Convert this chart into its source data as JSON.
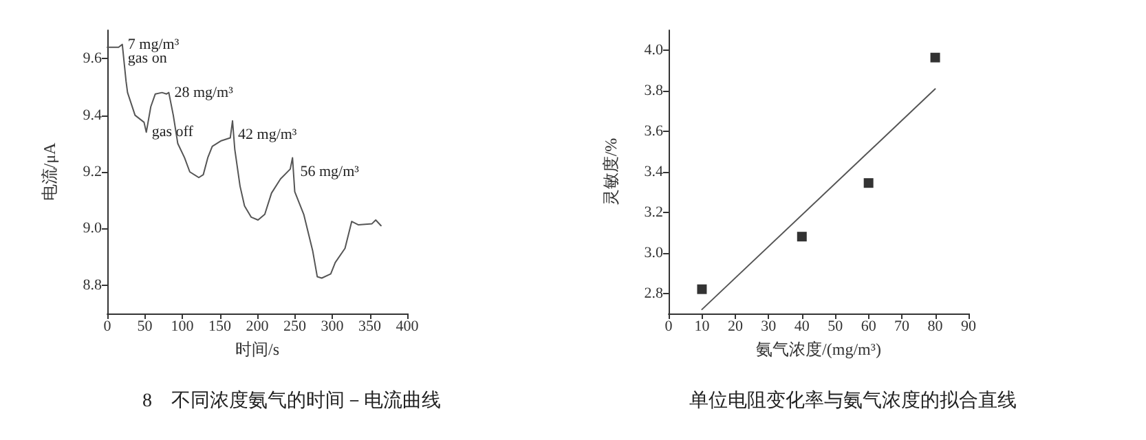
{
  "chart_data": [
    {
      "type": "line",
      "title": "8　不同浓度氨气的时间－电流曲线",
      "xlabel": "时间/s",
      "ylabel": "电流/μA",
      "xlim": [
        0,
        400
      ],
      "xticks": [
        0,
        50,
        100,
        150,
        200,
        250,
        300,
        350,
        400
      ],
      "ylim": [
        8.7,
        9.7
      ],
      "yticks": [
        {
          "value": 8.8,
          "label": "8.8"
        },
        {
          "value": 9,
          "label": "9.0"
        },
        {
          "value": 9.2,
          "label": "9.2"
        },
        {
          "value": 9.4,
          "label": "9.4"
        },
        {
          "value": 9.6,
          "label": "9.6"
        }
      ],
      "series": [
        {
          "color": "#555555",
          "x": [
            0,
            15,
            20,
            25,
            27,
            37,
            49,
            52,
            58,
            64,
            73,
            79,
            82,
            88,
            94,
            103,
            110,
            122,
            128,
            134,
            140,
            152,
            164,
            167,
            170,
            177,
            183,
            192,
            201,
            210,
            219,
            231,
            244,
            247,
            250,
            262,
            274,
            280,
            286,
            298,
            304,
            317,
            326,
            335,
            353,
            358,
            365
          ],
          "values": [
            9.64,
            9.64,
            9.65,
            9.52,
            9.48,
            9.4,
            9.375,
            9.34,
            9.43,
            9.475,
            9.48,
            9.475,
            9.48,
            9.4,
            9.3,
            9.25,
            9.2,
            9.18,
            9.19,
            9.25,
            9.29,
            9.31,
            9.32,
            9.38,
            9.28,
            9.15,
            9.08,
            9.04,
            9.03,
            9.05,
            9.125,
            9.175,
            9.21,
            9.25,
            9.13,
            9.05,
            8.92,
            8.83,
            8.825,
            8.84,
            8.88,
            8.93,
            9.025,
            9.013,
            9.017,
            9.03,
            9.01
          ]
        }
      ],
      "annotations": [
        {
          "text": "7 mg/m³",
          "x": 20,
          "y": 9.65
        },
        {
          "text": "gas on",
          "x": 20,
          "y": 9.6
        },
        {
          "text": "28 mg/m³",
          "x": 82,
          "y": 9.48
        },
        {
          "text": "gas off",
          "x": 52,
          "y": 9.34
        },
        {
          "text": "42 mg/m³",
          "x": 167,
          "y": 9.33
        },
        {
          "text": "56 mg/m³",
          "x": 250,
          "y": 9.2
        }
      ]
    },
    {
      "type": "scatter",
      "title": "单位电阻变化率与氨气浓度的拟合直线",
      "xlabel": "氨气浓度/(mg/m³)",
      "ylabel": "灵敏度/%",
      "xlim": [
        0,
        90
      ],
      "xticks": [
        0,
        10,
        20,
        30,
        40,
        50,
        60,
        70,
        80,
        90
      ],
      "ylim": [
        2.7,
        4.1
      ],
      "yticks": [
        {
          "value": 2.8,
          "label": "2.8"
        },
        {
          "value": 3,
          "label": "3.0"
        },
        {
          "value": 3.2,
          "label": "3.2"
        },
        {
          "value": 3.4,
          "label": "3.4"
        },
        {
          "value": 3.6,
          "label": "3.6"
        },
        {
          "value": 3.8,
          "label": "3.8"
        },
        {
          "value": 4,
          "label": "4.0"
        }
      ],
      "series": [
        {
          "marker": "square",
          "color": "#000000",
          "x": [
            10,
            40,
            60,
            80
          ],
          "values": [
            2.82,
            3.08,
            3.345,
            3.965
          ]
        },
        {
          "type": "line",
          "color": "#555555",
          "x": [
            10,
            80
          ],
          "values": [
            2.72,
            3.81
          ]
        }
      ]
    }
  ]
}
